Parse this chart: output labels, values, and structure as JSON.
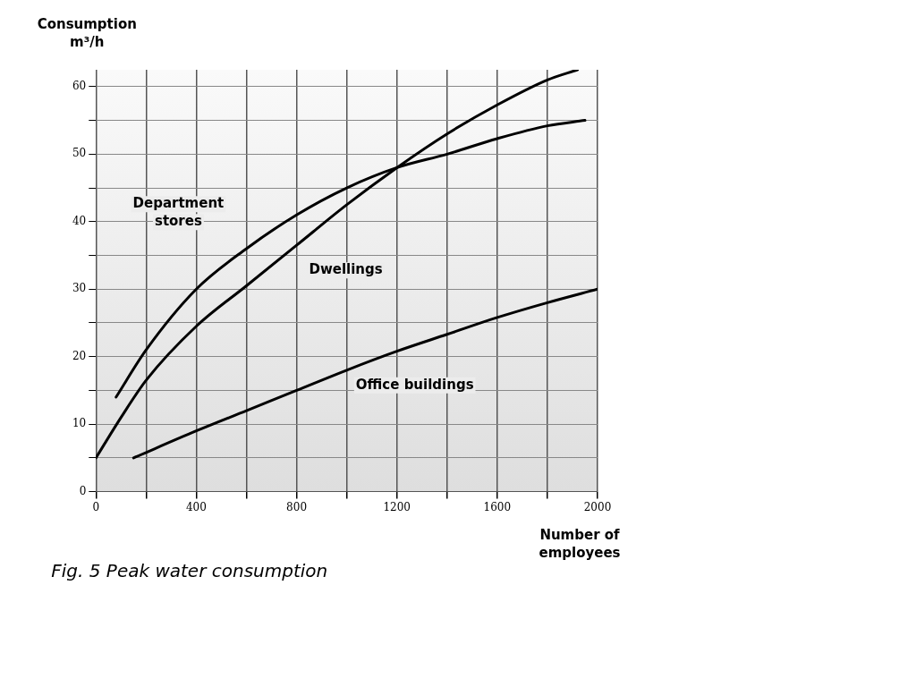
{
  "chart_data": {
    "type": "line",
    "xlabel": "Number of employees",
    "ylabel": "Consumption m³/h",
    "annotations": [
      "Fig. 5 Peak water consumption"
    ],
    "xlim": [
      0,
      2000
    ],
    "ylim": [
      0,
      62.5
    ],
    "xticks": [
      0,
      {
        "value": 200,
        "label": null
      },
      400,
      {
        "value": 600,
        "label": null
      },
      800,
      {
        "value": 1000,
        "label": null
      },
      1200,
      {
        "value": 1400,
        "label": null
      },
      1600,
      {
        "value": 1800,
        "label": null
      },
      2000
    ],
    "yticks": [
      0,
      {
        "value": 5,
        "label": null
      },
      10,
      {
        "value": 15,
        "label": null
      },
      20,
      {
        "value": 25,
        "label": null
      },
      30,
      {
        "value": 35,
        "label": null
      },
      40,
      {
        "value": 45,
        "label": null
      },
      50,
      {
        "value": 55,
        "label": null
      },
      60
    ],
    "grid": true,
    "legend": false,
    "marker": "none",
    "line_style": "solid",
    "series": [
      {
        "name": "Department stores",
        "color": "#000000",
        "x": [
          80,
          200,
          400,
          600,
          800,
          1000,
          1200,
          1400,
          1600,
          1800,
          1950
        ],
        "values": [
          14,
          21,
          30,
          36,
          41,
          45,
          48,
          50,
          52.3,
          54.2,
          55
        ]
      },
      {
        "name": "Dwellings",
        "color": "#000000",
        "x": [
          0,
          100,
          200,
          400,
          600,
          800,
          1000,
          1200,
          1400,
          1600,
          1800,
          1920
        ],
        "values": [
          5,
          11,
          16.5,
          24.5,
          30.5,
          36.5,
          42.5,
          48,
          53,
          57.3,
          61,
          62.5
        ]
      },
      {
        "name": "Office buildings",
        "color": "#000000",
        "x": [
          150,
          400,
          600,
          800,
          1000,
          1200,
          1400,
          1600,
          1800,
          2000
        ],
        "values": [
          5,
          9,
          12,
          15,
          18,
          20.8,
          23.3,
          25.8,
          28,
          30
        ]
      }
    ]
  }
}
